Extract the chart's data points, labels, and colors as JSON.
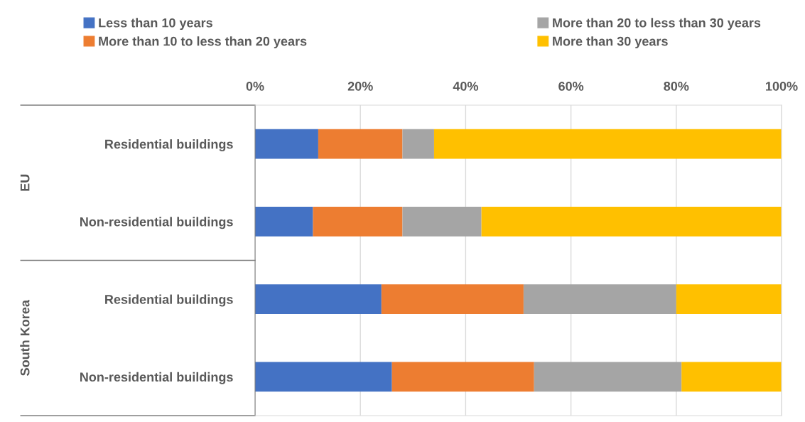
{
  "chart_data": {
    "type": "bar",
    "orientation": "horizontal",
    "stacked": true,
    "categories": [
      "Residential buildings",
      "Non-residential buildings",
      "Residential buildings",
      "Non-residential buildings"
    ],
    "series": [
      {
        "name": "Less than 10 years",
        "color": "#4472c4",
        "values": [
          12,
          11,
          24,
          26
        ]
      },
      {
        "name": "More than 10 to less than 20 years",
        "color": "#ed7d31",
        "values": [
          16,
          17,
          27,
          27
        ]
      },
      {
        "name": "More than 20 to less than 30 years",
        "color": "#a5a5a5",
        "values": [
          6,
          15,
          29,
          28
        ]
      },
      {
        "name": "More than 30 years",
        "color": "#ffc000",
        "values": [
          66,
          57,
          20,
          19
        ]
      }
    ],
    "xlim": [
      0,
      100
    ],
    "xticks": [
      {
        "value": 0,
        "label": "0%"
      },
      {
        "value": 20,
        "label": "20%"
      },
      {
        "value": 40,
        "label": "40%"
      },
      {
        "value": 60,
        "label": "60%"
      },
      {
        "value": 80,
        "label": "80%"
      },
      {
        "value": 100,
        "label": "100%"
      }
    ],
    "annotations": [
      "EU",
      "South Korea"
    ],
    "grid": "x",
    "legend": "top"
  }
}
